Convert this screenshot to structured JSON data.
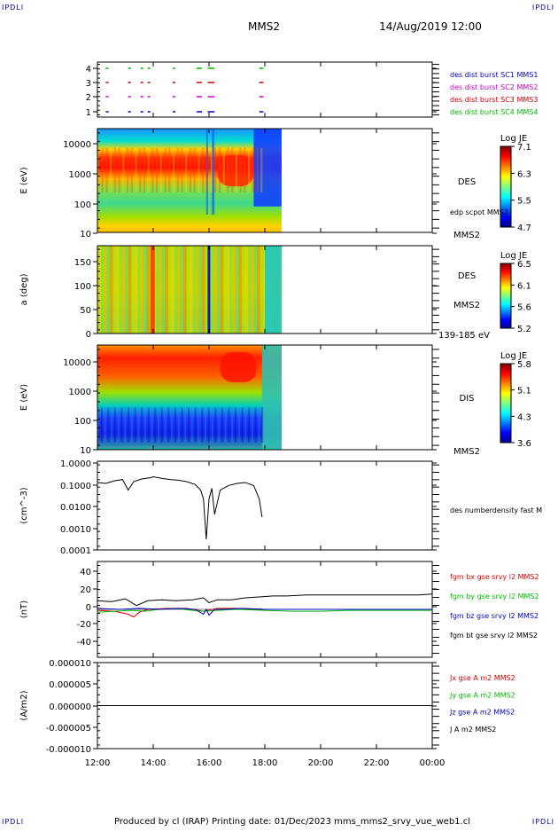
{
  "corners": {
    "tl": "IPDLI",
    "tr": "IPDLI",
    "bl": "IPDLI",
    "br": "IPDLI"
  },
  "header": {
    "spacecraft": "MMS2",
    "date": "14/Aug/2019 12:00"
  },
  "footer": {
    "text": "Produced by cl (IRAP)   Printing date: 01/Dec/2023   mms_mms2_srvy_vue_web1.cl"
  },
  "colors": {
    "mms1": "#0000cc",
    "mms2": "#cc00cc",
    "mms3": "#cc0000",
    "mms4": "#00bb00",
    "bx": "#dd0000",
    "by": "#00bb00",
    "bz": "#0000cc",
    "bt": "#000000"
  },
  "chart_data": [
    {
      "id": "burst",
      "type": "scatter",
      "y_ticks": [
        "4",
        "3",
        "2",
        "1"
      ],
      "x_range": [
        "12:00",
        "00:00"
      ],
      "legend": [
        {
          "label": "des dist burst SC1 MMS1",
          "color": "#0000cc"
        },
        {
          "label": "des dist burst SC2 MMS2",
          "color": "#cc00cc"
        },
        {
          "label": "des dist burst SC3 MMS3",
          "color": "#cc0000"
        },
        {
          "label": "des dist burst SC4 MMS4",
          "color": "#00bb00"
        }
      ],
      "intervals_hours": [
        [
          12.3,
          12.4
        ],
        [
          13.1,
          13.2
        ],
        [
          13.55,
          13.6
        ],
        [
          13.8,
          13.85
        ],
        [
          14.7,
          14.75
        ],
        [
          15.55,
          15.75
        ],
        [
          15.95,
          16.2
        ],
        [
          17.8,
          17.95
        ]
      ]
    },
    {
      "id": "des_energy",
      "type": "heatmap",
      "ylabel": "E (eV)",
      "y_ticks": [
        "10000",
        "1000",
        "100",
        "10"
      ],
      "colorbar": {
        "title": "Log JE",
        "ticks": [
          "7.1",
          "6.3",
          "5.5",
          "4.7"
        ]
      },
      "labels": [
        "DES",
        "MMS2"
      ],
      "overlay": "edp scpot MMS2"
    },
    {
      "id": "des_pitch",
      "type": "heatmap",
      "ylabel": "a (deg)",
      "y_ticks": [
        "150",
        "100",
        "50",
        "0"
      ],
      "colorbar": {
        "title": "Log JE",
        "ticks": [
          "6.5",
          "6.1",
          "5.6",
          "5.2"
        ]
      },
      "labels": [
        "DES",
        "MMS2",
        "139-185 eV"
      ]
    },
    {
      "id": "dis_energy",
      "type": "heatmap",
      "ylabel": "E (eV)",
      "y_ticks": [
        "10000",
        "1000",
        "100",
        "10"
      ],
      "colorbar": {
        "title": "Log JE",
        "ticks": [
          "5.8",
          "5.1",
          "4.3",
          "3.6"
        ]
      },
      "labels": [
        "DIS",
        "MMS2"
      ]
    },
    {
      "id": "density",
      "type": "line",
      "ylabel": "(cm^-3)",
      "y_ticks": [
        "1.0000",
        "0.1000",
        "0.0100",
        "0.0010",
        "0.0001"
      ],
      "legend": [
        {
          "label": "des numberdensity fast M",
          "color": "#000000"
        }
      ],
      "series": [
        {
          "x_hours": [
            12.0,
            12.3,
            12.6,
            12.9,
            13.1,
            13.3,
            13.6,
            13.9,
            14.0,
            14.3,
            14.6,
            14.9,
            15.2,
            15.5,
            15.7,
            15.8,
            15.9,
            16.0,
            16.1,
            16.2,
            16.4,
            16.7,
            17.0,
            17.3,
            17.6,
            17.8,
            17.9
          ],
          "y": [
            0.11,
            0.1,
            0.13,
            0.15,
            0.05,
            0.12,
            0.16,
            0.18,
            0.2,
            0.17,
            0.15,
            0.14,
            0.12,
            0.09,
            0.05,
            0.02,
            0.0003,
            0.02,
            0.06,
            0.004,
            0.05,
            0.08,
            0.1,
            0.11,
            0.08,
            0.02,
            0.003
          ]
        }
      ]
    },
    {
      "id": "b_field",
      "type": "line",
      "ylabel": "(nT)",
      "y_ticks": [
        "40",
        "20",
        "0",
        "-20",
        "-40"
      ],
      "ylim": [
        -50,
        50
      ],
      "legend": [
        {
          "label": "fgm bx gse srvy l2 MMS2",
          "color": "#dd0000"
        },
        {
          "label": "fgm by gse srvy l2 MMS2",
          "color": "#00bb00"
        },
        {
          "label": "fgm bz gse srvy l2 MMS2",
          "color": "#0000cc"
        },
        {
          "label": "fgm bt gse srvy l2 MMS2",
          "color": "#000000"
        }
      ],
      "series": [
        {
          "name": "fgm bt gse srvy l2 MMS2",
          "x_hours": [
            12.0,
            12.5,
            13.0,
            13.4,
            13.8,
            14.3,
            14.8,
            15.4,
            15.8,
            16.0,
            16.3,
            16.8,
            17.3,
            17.8,
            18.3,
            18.8,
            19.5,
            20.5,
            21.5,
            22.5,
            23.5,
            24.0
          ],
          "y": [
            9,
            8,
            11,
            4,
            9,
            10,
            9,
            10,
            12,
            7,
            10,
            10,
            12,
            13,
            14,
            14,
            15,
            15,
            15,
            15,
            15,
            16
          ]
        },
        {
          "name": "fgm bx gse srvy l2 MMS2",
          "x_hours": [
            12.0,
            12.6,
            13.1,
            13.3,
            13.5,
            13.8,
            14.5,
            15.2,
            15.8,
            16.3,
            17.0,
            18.0,
            19.0,
            20.0,
            21.0,
            22.0,
            23.0,
            24.0
          ],
          "y": [
            -1,
            -2,
            -5,
            -8,
            -3,
            0,
            1,
            1,
            -2,
            1,
            1,
            0,
            0,
            0,
            0,
            0,
            0,
            0
          ]
        },
        {
          "name": "fgm by gse srvy l2 MMS2",
          "x_hours": [
            12.0,
            12.6,
            13.2,
            13.7,
            14.2,
            14.8,
            15.4,
            15.8,
            16.3,
            17.0,
            18.0,
            19.0,
            20.0,
            21.0,
            22.0,
            23.0,
            24.0
          ],
          "y": [
            -3,
            -2,
            -1,
            -2,
            0,
            1,
            -1,
            -2,
            -1,
            0,
            -1,
            -2,
            -2,
            -1,
            -1,
            -1,
            -1
          ]
        },
        {
          "name": "fgm bz gse srvy l2 MMS2",
          "x_hours": [
            12.0,
            12.8,
            13.5,
            14.2,
            14.9,
            15.5,
            15.8,
            15.9,
            16.0,
            16.2,
            16.5,
            17.2,
            18.0,
            19.0,
            20.0,
            21.0,
            22.0,
            23.0,
            24.0
          ],
          "y": [
            1,
            0,
            1,
            0,
            1,
            0,
            -5,
            0,
            -6,
            0,
            0,
            1,
            0,
            0,
            0,
            0,
            0,
            0,
            0
          ]
        }
      ]
    },
    {
      "id": "current",
      "type": "line",
      "ylabel": "(A/m2)",
      "y_ticks": [
        "0.000010",
        "0.000005",
        "0.000000",
        "-0.000005",
        "-0.000010"
      ],
      "ylim": [
        -1e-05,
        1e-05
      ],
      "legend": [
        {
          "label": "Jx gse A m2 MMS2",
          "color": "#dd0000"
        },
        {
          "label": "Jy gse A m2 MMS2",
          "color": "#00bb00"
        },
        {
          "label": "Jz gse A m2 MMS2",
          "color": "#0000cc"
        },
        {
          "label": "J A m2 MMS2",
          "color": "#000000"
        }
      ],
      "series": [
        {
          "name": "J A m2 MMS2",
          "x_hours": [
            12.0,
            24.0
          ],
          "y": [
            0,
            0
          ]
        }
      ]
    }
  ],
  "x_axis": {
    "tick_labels": [
      "12:00",
      "14:00",
      "16:00",
      "18:00",
      "20:00",
      "22:00",
      "00:00"
    ]
  }
}
